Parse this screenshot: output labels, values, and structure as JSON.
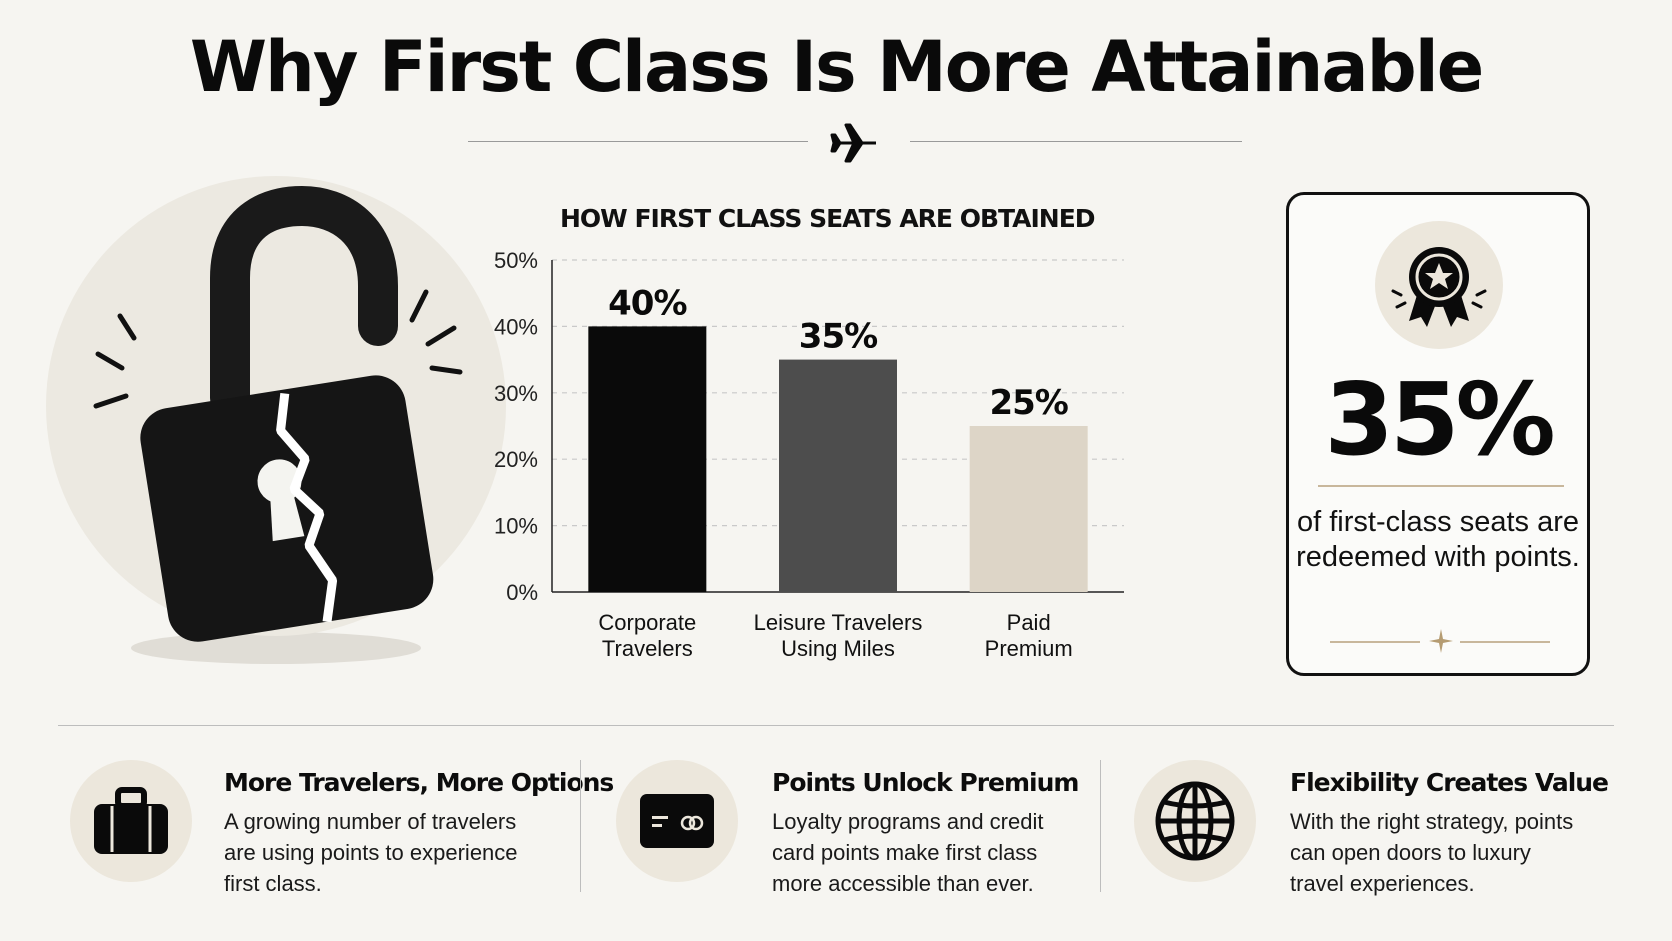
{
  "title": "Why First Class Is More Attainable",
  "icons": {
    "plane": "airplane-icon",
    "lock": "broken-padlock-icon",
    "medal": "award-medal-icon",
    "sparkle": "sparkle-icon",
    "features": [
      "suitcase-icon",
      "credit-card-icon",
      "globe-icon"
    ]
  },
  "colors": {
    "background": "#f6f5f1",
    "bar_corporate": "#0a0a0a",
    "bar_leisure": "#4d4d4d",
    "bar_paid": "#ddd5c7",
    "accent_beige": "#ece7dc",
    "accent_gold": "#c8b79c"
  },
  "chart_data": {
    "type": "bar",
    "title": "HOW FIRST CLASS SEATS ARE OBTAINED",
    "categories": [
      [
        "Corporate",
        "Travelers"
      ],
      [
        "Leisure Travelers",
        "Using Miles"
      ],
      [
        "Paid",
        "Premium"
      ]
    ],
    "values": [
      40,
      35,
      25
    ],
    "data_labels": [
      "40%",
      "35%",
      "25%"
    ],
    "ylim": [
      0,
      50
    ],
    "yticks": [
      0,
      10,
      20,
      30,
      40,
      50
    ],
    "ytick_labels": [
      "0%",
      "10%",
      "20%",
      "30%",
      "40%",
      "50%"
    ],
    "grid": true,
    "xlabel": "",
    "ylabel": ""
  },
  "stat_card": {
    "value": "35%",
    "text": "of first-class seats are redeemed with points."
  },
  "features": [
    {
      "title": "More Travelers, More Options",
      "desc": "A growing number of travelers are using points to experience first class."
    },
    {
      "title": "Points Unlock Premium",
      "desc": "Loyalty programs and credit card points make first class more accessible than ever."
    },
    {
      "title": "Flexibility Creates Value",
      "desc": "With the right strategy, points can open doors to luxury travel experiences."
    }
  ]
}
